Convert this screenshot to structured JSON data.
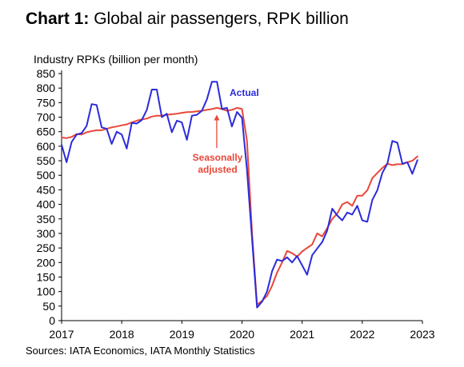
{
  "chart_title": {
    "prefix": "Chart 1:",
    "text": "Global air passengers, RPK billion"
  },
  "source": "Sources: IATA Economics, IATA Monthly Statistics",
  "colors": {
    "actual": "#2b2bdc",
    "seasonal": "#e8483a",
    "arrow": "#e8483a"
  },
  "chart_data": {
    "type": "line",
    "title": "Chart 1: Global air passengers, RPK billion",
    "ylabel": "Industry RPKs (billion per month)",
    "xlabel": "",
    "xlim": [
      2017,
      2023
    ],
    "ylim": [
      0,
      850
    ],
    "yticks": [
      0,
      50,
      100,
      150,
      200,
      250,
      300,
      350,
      400,
      450,
      500,
      550,
      600,
      650,
      700,
      750,
      800,
      850
    ],
    "xticks": [
      2017,
      2018,
      2019,
      2020,
      2021,
      2022,
      2023
    ],
    "grid": false,
    "legend": "none",
    "annotations": [
      {
        "text": "Actual",
        "series": "Actual"
      },
      {
        "text_lines": [
          "Seasonally",
          "adjusted"
        ],
        "series": "Seasonally adjusted",
        "arrow_to": [
          2019.58,
          725
        ]
      }
    ],
    "series": [
      {
        "name": "Actual",
        "x": [
          2017.0,
          2017.083,
          2017.167,
          2017.25,
          2017.333,
          2017.417,
          2017.5,
          2017.583,
          2017.667,
          2017.75,
          2017.833,
          2017.917,
          2018.0,
          2018.083,
          2018.167,
          2018.25,
          2018.333,
          2018.417,
          2018.5,
          2018.583,
          2018.667,
          2018.75,
          2018.833,
          2018.917,
          2019.0,
          2019.083,
          2019.167,
          2019.25,
          2019.333,
          2019.417,
          2019.5,
          2019.583,
          2019.667,
          2019.75,
          2019.833,
          2019.917,
          2020.0,
          2020.083,
          2020.167,
          2020.25,
          2020.333,
          2020.417,
          2020.5,
          2020.583,
          2020.667,
          2020.75,
          2020.833,
          2020.917,
          2021.0,
          2021.083,
          2021.167,
          2021.25,
          2021.333,
          2021.417,
          2021.5,
          2021.583,
          2021.667,
          2021.75,
          2021.833,
          2021.917,
          2022.0,
          2022.083,
          2022.167,
          2022.25,
          2022.333,
          2022.417,
          2022.5,
          2022.583,
          2022.667,
          2022.75,
          2022.833,
          2022.917
        ],
        "y": [
          605,
          545,
          615,
          640,
          645,
          670,
          745,
          742,
          665,
          660,
          608,
          650,
          640,
          592,
          680,
          678,
          690,
          725,
          795,
          795,
          700,
          712,
          648,
          688,
          682,
          622,
          705,
          708,
          722,
          762,
          822,
          822,
          728,
          732,
          668,
          718,
          698,
          520,
          280,
          45,
          65,
          100,
          170,
          210,
          205,
          218,
          200,
          222,
          190,
          158,
          225,
          248,
          270,
          310,
          385,
          362,
          345,
          372,
          365,
          395,
          345,
          340,
          415,
          448,
          508,
          540,
          618,
          612,
          540,
          545,
          505,
          552
        ]
      },
      {
        "name": "Seasonally adjusted",
        "x": [
          2017.0,
          2017.083,
          2017.167,
          2017.25,
          2017.333,
          2017.417,
          2017.5,
          2017.583,
          2017.667,
          2017.75,
          2017.833,
          2017.917,
          2018.0,
          2018.083,
          2018.167,
          2018.25,
          2018.333,
          2018.417,
          2018.5,
          2018.583,
          2018.667,
          2018.75,
          2018.833,
          2018.917,
          2019.0,
          2019.083,
          2019.167,
          2019.25,
          2019.333,
          2019.417,
          2019.5,
          2019.583,
          2019.667,
          2019.75,
          2019.833,
          2019.917,
          2020.0,
          2020.083,
          2020.167,
          2020.25,
          2020.333,
          2020.417,
          2020.5,
          2020.583,
          2020.667,
          2020.75,
          2020.833,
          2020.917,
          2021.0,
          2021.083,
          2021.167,
          2021.25,
          2021.333,
          2021.417,
          2021.5,
          2021.583,
          2021.667,
          2021.75,
          2021.833,
          2021.917,
          2022.0,
          2022.083,
          2022.167,
          2022.25,
          2022.333,
          2022.417,
          2022.5,
          2022.583,
          2022.667,
          2022.75,
          2022.833,
          2022.917
        ],
        "y": [
          630,
          628,
          632,
          642,
          640,
          648,
          652,
          655,
          655,
          660,
          665,
          668,
          672,
          675,
          682,
          688,
          692,
          695,
          702,
          705,
          705,
          708,
          710,
          712,
          715,
          717,
          718,
          720,
          722,
          725,
          728,
          732,
          728,
          722,
          725,
          732,
          728,
          620,
          300,
          55,
          68,
          85,
          120,
          165,
          200,
          240,
          232,
          220,
          238,
          250,
          262,
          300,
          290,
          318,
          350,
          368,
          400,
          408,
          395,
          430,
          430,
          448,
          490,
          508,
          525,
          540,
          535,
          538,
          538,
          545,
          550,
          565
        ]
      }
    ]
  }
}
